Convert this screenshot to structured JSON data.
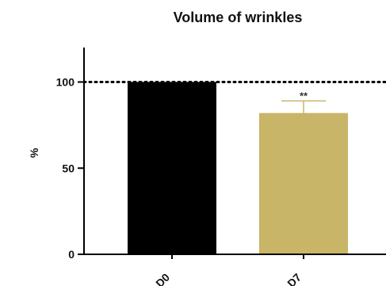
{
  "chart_data": {
    "type": "bar",
    "title": "Volume of wrinkles",
    "xlabel": "",
    "ylabel": "%",
    "ylim": [
      0,
      120
    ],
    "yticks": [
      0,
      50,
      100
    ],
    "yticklabels": [
      "0",
      "50",
      "100"
    ],
    "categories": [
      "D0",
      "D7"
    ],
    "values": [
      100,
      82
    ],
    "errors": [
      0,
      7
    ],
    "bar_colors": [
      "#000000",
      "#c8b568"
    ],
    "reference_line": 100,
    "annotations": [
      {
        "category": "D7",
        "text": "**"
      }
    ],
    "grid": false
  }
}
